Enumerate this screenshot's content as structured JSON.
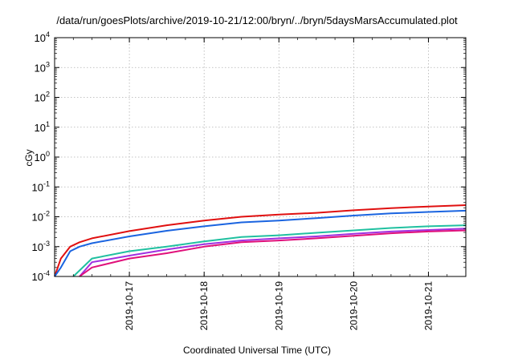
{
  "chart_data": {
    "type": "line",
    "title": "/data/run/goesPlots/archive/2019-10-21/12:00/bryn/../bryn/5daysMarsAccumulated.plot",
    "xlabel": "Coordinated Universal Time (UTC)",
    "ylabel": "cGy",
    "y_scale": "log",
    "ylim_exp": [
      -4,
      4
    ],
    "xlim": [
      "2019-10-16T00:00",
      "2019-10-21T12:00"
    ],
    "x_ticks": [
      "2019-10-17",
      "2019-10-18",
      "2019-10-19",
      "2019-10-20",
      "2019-10-21"
    ],
    "y_ticks": [
      {
        "base": "10",
        "exp": "-4"
      },
      {
        "base": "10",
        "exp": "-3"
      },
      {
        "base": "10",
        "exp": "-2"
      },
      {
        "base": "10",
        "exp": "-1"
      },
      {
        "base": "10",
        "exp": "0"
      },
      {
        "base": "10",
        "exp": "1"
      },
      {
        "base": "10",
        "exp": "2"
      },
      {
        "base": "10",
        "exp": "3"
      },
      {
        "base": "10",
        "exp": "4"
      }
    ],
    "grid": true,
    "series": [
      {
        "color": "#e01010",
        "x": [
          "2019-10-16T00:00",
          "2019-10-16T02:00",
          "2019-10-16T05:00",
          "2019-10-16T08:00",
          "2019-10-16T12:00",
          "2019-10-17T00:00",
          "2019-10-17T12:00",
          "2019-10-18T00:00",
          "2019-10-18T12:00",
          "2019-10-19T00:00",
          "2019-10-19T12:00",
          "2019-10-20T00:00",
          "2019-10-20T12:00",
          "2019-10-21T00:00",
          "2019-10-21T12:00"
        ],
        "y": [
          0.0001,
          0.0004,
          0.001,
          0.0014,
          0.0019,
          0.0033,
          0.0052,
          0.0075,
          0.01,
          0.0118,
          0.0135,
          0.0165,
          0.0195,
          0.022,
          0.0245
        ]
      },
      {
        "color": "#1a64e0",
        "x": [
          "2019-10-16T00:00",
          "2019-10-16T02:00",
          "2019-10-16T05:00",
          "2019-10-16T08:00",
          "2019-10-16T12:00",
          "2019-10-17T00:00",
          "2019-10-17T12:00",
          "2019-10-18T00:00",
          "2019-10-18T12:00",
          "2019-10-19T00:00",
          "2019-10-19T12:00",
          "2019-10-20T00:00",
          "2019-10-20T12:00",
          "2019-10-21T00:00",
          "2019-10-21T12:00"
        ],
        "y": [
          0.0001,
          0.0002,
          0.0007,
          0.001,
          0.0013,
          0.0022,
          0.0034,
          0.0048,
          0.0065,
          0.0075,
          0.009,
          0.011,
          0.013,
          0.0145,
          0.016
        ]
      },
      {
        "color": "#20c0a0",
        "x": [
          "2019-10-16T06:00",
          "2019-10-16T12:00",
          "2019-10-17T00:00",
          "2019-10-17T12:00",
          "2019-10-18T00:00",
          "2019-10-18T12:00",
          "2019-10-19T00:00",
          "2019-10-19T12:00",
          "2019-10-20T00:00",
          "2019-10-20T12:00",
          "2019-10-21T00:00",
          "2019-10-21T12:00"
        ],
        "y": [
          0.0001,
          0.0004,
          0.0007,
          0.001,
          0.0015,
          0.0021,
          0.0024,
          0.0029,
          0.0035,
          0.0042,
          0.0048,
          0.0052
        ]
      },
      {
        "color": "#a030e0",
        "x": [
          "2019-10-16T08:00",
          "2019-10-16T12:00",
          "2019-10-17T00:00",
          "2019-10-17T12:00",
          "2019-10-18T00:00",
          "2019-10-18T12:00",
          "2019-10-19T00:00",
          "2019-10-19T12:00",
          "2019-10-20T00:00",
          "2019-10-20T12:00",
          "2019-10-21T00:00",
          "2019-10-21T12:00"
        ],
        "y": [
          0.0001,
          0.0003,
          0.0005,
          0.0008,
          0.0012,
          0.0016,
          0.0019,
          0.0022,
          0.0027,
          0.0032,
          0.0036,
          0.004
        ]
      },
      {
        "color": "#e0107a",
        "x": [
          "2019-10-16T08:00",
          "2019-10-16T12:00",
          "2019-10-17T00:00",
          "2019-10-17T12:00",
          "2019-10-18T00:00",
          "2019-10-18T12:00",
          "2019-10-19T00:00",
          "2019-10-19T12:00",
          "2019-10-20T00:00",
          "2019-10-20T12:00",
          "2019-10-21T00:00",
          "2019-10-21T12:00"
        ],
        "y": [
          0.0001,
          0.0002,
          0.0004,
          0.0006,
          0.001,
          0.0014,
          0.0016,
          0.0019,
          0.0023,
          0.0028,
          0.0032,
          0.0035
        ]
      }
    ]
  }
}
